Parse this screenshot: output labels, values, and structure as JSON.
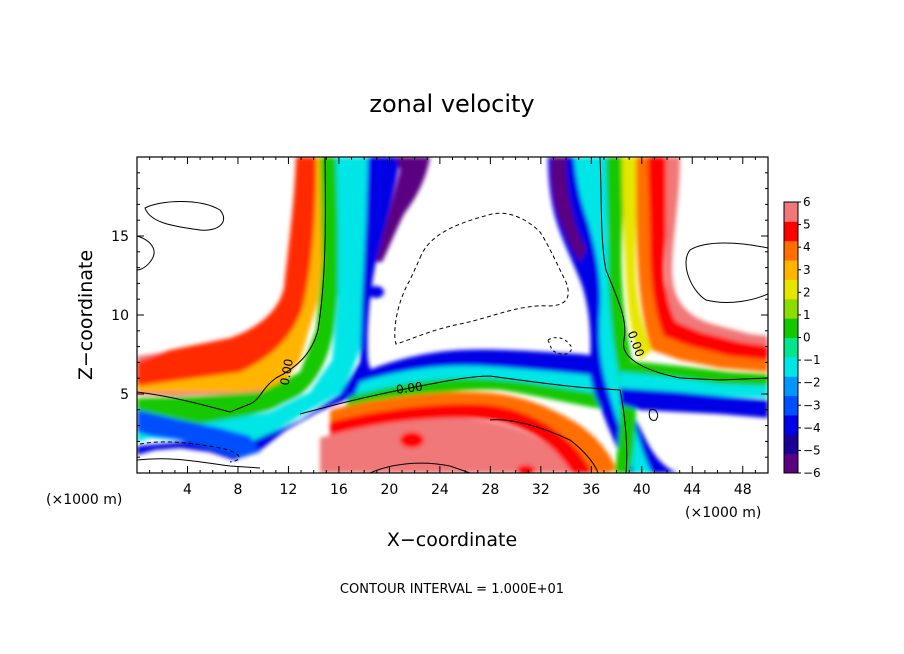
{
  "chart_data": {
    "type": "heatmap",
    "title": "zonal velocity",
    "xlabel": "X−coordinate",
    "ylabel": "Z−coordinate",
    "x_unit_left": "(×1000 m)",
    "x_unit_right": "(×1000 m)",
    "footer": "CONTOUR INTERVAL = 1.000E+01",
    "xlim": [
      0,
      50
    ],
    "ylim": [
      0,
      20
    ],
    "xticks": [
      4,
      8,
      12,
      16,
      20,
      24,
      28,
      32,
      36,
      40,
      44,
      48
    ],
    "xtick_labels": [
      "4",
      "8",
      "12",
      "16",
      "20",
      "24",
      "28",
      "32",
      "36",
      "40",
      "44",
      "48"
    ],
    "yticks": [
      5,
      10,
      15
    ],
    "ytick_labels": [
      "5",
      "10",
      "15"
    ],
    "colorbar": {
      "range": [
        -6,
        6
      ],
      "tick_values": [
        6,
        5,
        4,
        3,
        2,
        1,
        0,
        -1,
        -2,
        -3,
        -4,
        -5,
        -6
      ],
      "tick_labels": [
        "6",
        "5",
        "4",
        "3",
        "2",
        "1",
        "0",
        "−1",
        "−2",
        "−3",
        "−4",
        "−5",
        "−6"
      ],
      "colors": [
        "#5a0080",
        "#1a0096",
        "#0000e6",
        "#0050ff",
        "#0096ff",
        "#00e6e6",
        "#00e68c",
        "#14c800",
        "#8cdc00",
        "#e6e600",
        "#ffb400",
        "#ff6e00",
        "#ff0000",
        "#f07878"
      ]
    },
    "contour_labels": [
      "0.00",
      "0.00",
      "0.00"
    ],
    "series": []
  }
}
